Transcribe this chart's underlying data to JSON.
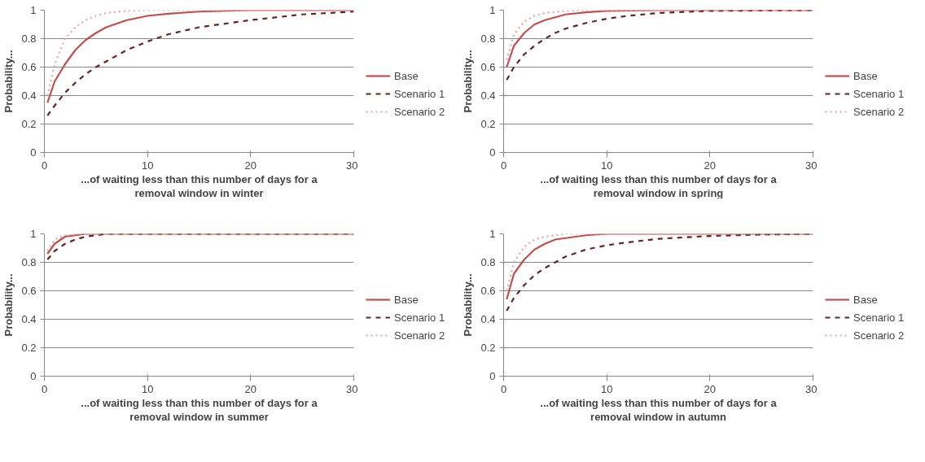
{
  "chart_data": [
    {
      "type": "line",
      "ylabel": "Probability...",
      "xlabel": "...of waiting less than this number of days for a removal window in winter",
      "xlim": [
        0,
        30
      ],
      "xticks": [
        0,
        10,
        20,
        30
      ],
      "ylim": [
        0,
        1
      ],
      "yticks": [
        0,
        0.2,
        0.4,
        0.6,
        0.8,
        1
      ],
      "grid": "y",
      "legend": "right",
      "series": [
        {
          "name": "Base",
          "color": "#c0504d",
          "line_style": "solid",
          "x": [
            0.3,
            1,
            2,
            3,
            4,
            5,
            6,
            8,
            10,
            12,
            15,
            20,
            25,
            30
          ],
          "values": [
            0.35,
            0.5,
            0.62,
            0.72,
            0.79,
            0.84,
            0.88,
            0.93,
            0.96,
            0.975,
            0.99,
            1.0,
            1.0,
            1.0
          ]
        },
        {
          "name": "Scenario 1",
          "color": "#632523",
          "line_style": "dashed",
          "x": [
            0.3,
            1,
            2,
            3,
            4,
            5,
            6,
            8,
            10,
            12,
            15,
            20,
            25,
            30
          ],
          "values": [
            0.26,
            0.33,
            0.42,
            0.49,
            0.55,
            0.6,
            0.64,
            0.72,
            0.78,
            0.83,
            0.88,
            0.93,
            0.97,
            0.99
          ]
        },
        {
          "name": "Scenario 2",
          "color": "#e6a5a5",
          "line_style": "dotted",
          "x": [
            0.3,
            1,
            2,
            3,
            4,
            5,
            6,
            8,
            10,
            20,
            30
          ],
          "values": [
            0.4,
            0.62,
            0.8,
            0.88,
            0.93,
            0.96,
            0.98,
            0.995,
            1.0,
            1.0,
            1.0
          ]
        }
      ]
    },
    {
      "type": "line",
      "ylabel": "Probability...",
      "xlabel": "...of waiting less than this number of days for a removal window in spring",
      "xlim": [
        0,
        30
      ],
      "xticks": [
        0,
        10,
        20,
        30
      ],
      "ylim": [
        0,
        1
      ],
      "yticks": [
        0,
        0.2,
        0.4,
        0.6,
        0.8,
        1
      ],
      "grid": "y",
      "legend": "right",
      "series": [
        {
          "name": "Base",
          "color": "#c0504d",
          "line_style": "solid",
          "x": [
            0.3,
            1,
            2,
            3,
            4,
            5,
            6,
            8,
            10,
            15,
            30
          ],
          "values": [
            0.6,
            0.75,
            0.84,
            0.9,
            0.93,
            0.95,
            0.97,
            0.985,
            0.995,
            1.0,
            1.0
          ]
        },
        {
          "name": "Scenario 1",
          "color": "#632523",
          "line_style": "dashed",
          "x": [
            0.3,
            1,
            2,
            3,
            4,
            5,
            6,
            8,
            10,
            12,
            15,
            20,
            30
          ],
          "values": [
            0.51,
            0.6,
            0.69,
            0.75,
            0.8,
            0.84,
            0.87,
            0.91,
            0.94,
            0.96,
            0.98,
            0.995,
            1.0
          ]
        },
        {
          "name": "Scenario 2",
          "color": "#e6a5a5",
          "line_style": "dotted",
          "x": [
            0.3,
            1,
            2,
            3,
            4,
            6,
            8,
            30
          ],
          "values": [
            0.65,
            0.83,
            0.92,
            0.96,
            0.98,
            0.995,
            1.0,
            1.0
          ]
        }
      ]
    },
    {
      "type": "line",
      "ylabel": "Probability...",
      "xlabel": "...of waiting less than this number of days for a removal window in summer",
      "xlim": [
        0,
        30
      ],
      "xticks": [
        0,
        10,
        20,
        30
      ],
      "ylim": [
        0,
        1
      ],
      "yticks": [
        0,
        0.2,
        0.4,
        0.6,
        0.8,
        1
      ],
      "grid": "y",
      "legend": "right",
      "series": [
        {
          "name": "Base",
          "color": "#c0504d",
          "line_style": "solid",
          "x": [
            0.3,
            1,
            2,
            3,
            4,
            30
          ],
          "values": [
            0.86,
            0.93,
            0.98,
            0.99,
            1.0,
            1.0
          ]
        },
        {
          "name": "Scenario 1",
          "color": "#632523",
          "line_style": "dashed",
          "x": [
            0.3,
            1,
            2,
            3,
            4,
            5,
            6,
            30
          ],
          "values": [
            0.82,
            0.88,
            0.93,
            0.96,
            0.98,
            0.99,
            1.0,
            1.0
          ]
        },
        {
          "name": "Scenario 2",
          "color": "#e6a5a5",
          "line_style": "dotted",
          "x": [
            0.3,
            1,
            2,
            3,
            30
          ],
          "values": [
            0.88,
            0.96,
            0.99,
            1.0,
            1.0
          ]
        }
      ]
    },
    {
      "type": "line",
      "ylabel": "Probability...",
      "xlabel": "...of waiting less than this number of days for a removal window in autumn",
      "xlim": [
        0,
        30
      ],
      "xticks": [
        0,
        10,
        20,
        30
      ],
      "ylim": [
        0,
        1
      ],
      "yticks": [
        0,
        0.2,
        0.4,
        0.6,
        0.8,
        1
      ],
      "grid": "y",
      "legend": "right",
      "series": [
        {
          "name": "Base",
          "color": "#c0504d",
          "line_style": "solid",
          "x": [
            0.3,
            1,
            2,
            3,
            4,
            5,
            6,
            8,
            10,
            30
          ],
          "values": [
            0.54,
            0.72,
            0.82,
            0.89,
            0.93,
            0.96,
            0.97,
            0.99,
            1.0,
            1.0
          ]
        },
        {
          "name": "Scenario 1",
          "color": "#632523",
          "line_style": "dashed",
          "x": [
            0.3,
            1,
            2,
            3,
            4,
            5,
            6,
            8,
            10,
            12,
            15,
            20,
            25,
            30
          ],
          "values": [
            0.46,
            0.55,
            0.64,
            0.71,
            0.76,
            0.8,
            0.84,
            0.89,
            0.92,
            0.94,
            0.965,
            0.985,
            0.995,
            1.0
          ]
        },
        {
          "name": "Scenario 2",
          "color": "#e6a5a5",
          "line_style": "dotted",
          "x": [
            0.3,
            1,
            2,
            3,
            4,
            6,
            30
          ],
          "values": [
            0.6,
            0.8,
            0.91,
            0.96,
            0.98,
            1.0,
            1.0
          ]
        }
      ]
    }
  ]
}
